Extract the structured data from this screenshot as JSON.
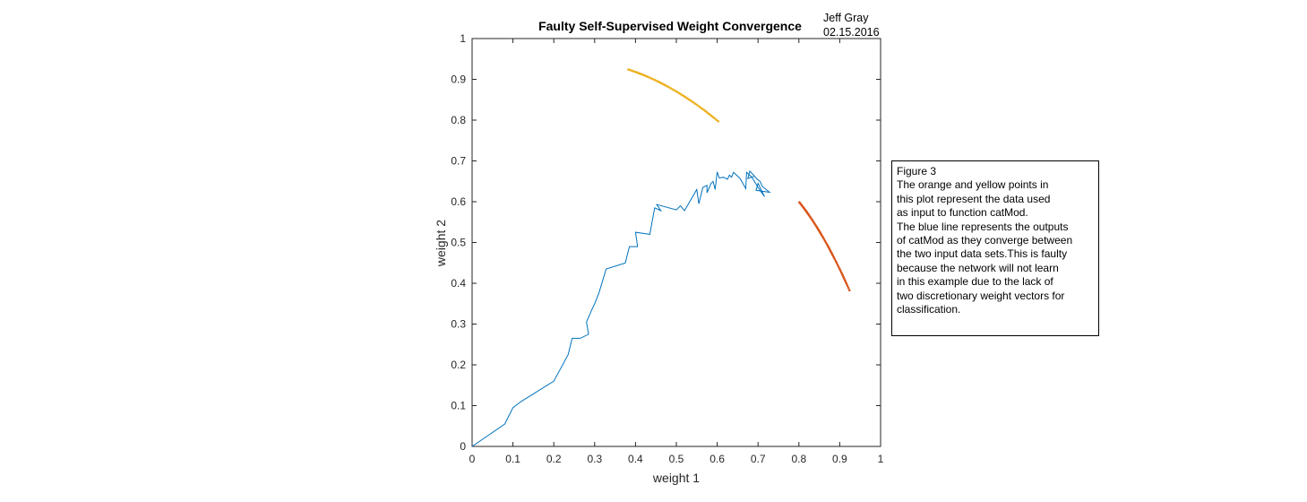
{
  "chart_data": {
    "type": "scatter",
    "title": "Faulty Self-Supervised Weight Convergence",
    "author_lines": [
      "Jeff Gray",
      "02.15.2016"
    ],
    "xlabel": "weight 1",
    "ylabel": "weight 2",
    "xlim": [
      0,
      1
    ],
    "ylim": [
      0,
      1
    ],
    "x_ticks": [
      "0",
      "0.1",
      "0.2",
      "0.3",
      "0.4",
      "0.5",
      "0.6",
      "0.7",
      "0.8",
      "0.9",
      "1"
    ],
    "y_ticks": [
      "0",
      "0.1",
      "0.2",
      "0.3",
      "0.4",
      "0.5",
      "0.6",
      "0.7",
      "0.8",
      "0.9",
      "1"
    ],
    "grid": false,
    "series": [
      {
        "kind": "line",
        "color": "#0072bd",
        "points": [
          [
            0.0,
            0.0
          ],
          [
            0.08,
            0.055
          ],
          [
            0.1,
            0.095
          ],
          [
            0.12,
            0.11
          ],
          [
            0.2,
            0.16
          ],
          [
            0.235,
            0.225
          ],
          [
            0.245,
            0.265
          ],
          [
            0.265,
            0.265
          ],
          [
            0.285,
            0.275
          ],
          [
            0.28,
            0.305
          ],
          [
            0.293,
            0.335
          ],
          [
            0.3,
            0.35
          ],
          [
            0.31,
            0.375
          ],
          [
            0.328,
            0.435
          ],
          [
            0.375,
            0.45
          ],
          [
            0.385,
            0.49
          ],
          [
            0.405,
            0.49
          ],
          [
            0.4,
            0.525
          ],
          [
            0.435,
            0.52
          ],
          [
            0.447,
            0.585
          ],
          [
            0.462,
            0.578
          ],
          [
            0.452,
            0.593
          ],
          [
            0.5,
            0.58
          ],
          [
            0.51,
            0.59
          ],
          [
            0.52,
            0.578
          ],
          [
            0.55,
            0.63
          ],
          [
            0.555,
            0.595
          ],
          [
            0.565,
            0.635
          ],
          [
            0.575,
            0.64
          ],
          [
            0.575,
            0.622
          ],
          [
            0.585,
            0.645
          ],
          [
            0.59,
            0.65
          ],
          [
            0.595,
            0.63
          ],
          [
            0.6,
            0.673
          ],
          [
            0.605,
            0.658
          ],
          [
            0.615,
            0.66
          ],
          [
            0.625,
            0.655
          ],
          [
            0.63,
            0.665
          ],
          [
            0.635,
            0.66
          ],
          [
            0.64,
            0.672
          ],
          [
            0.655,
            0.658
          ],
          [
            0.66,
            0.65
          ],
          [
            0.67,
            0.632
          ],
          [
            0.672,
            0.672
          ],
          [
            0.685,
            0.66
          ],
          [
            0.7,
            0.635
          ],
          [
            0.716,
            0.612
          ],
          [
            0.7,
            0.645
          ],
          [
            0.695,
            0.628
          ],
          [
            0.728,
            0.623
          ],
          [
            0.71,
            0.638
          ],
          [
            0.705,
            0.65
          ],
          [
            0.698,
            0.655
          ],
          [
            0.68,
            0.675
          ],
          [
            0.675,
            0.657
          ],
          [
            0.69,
            0.662
          ]
        ]
      },
      {
        "kind": "points",
        "color": "#edb120",
        "x_start": 0.38,
        "x_end": 0.605,
        "n": 60,
        "note_values": "points along arc from (0.38, 0.925) to (0.605, 0.795)"
      },
      {
        "kind": "points",
        "color": "#d95319",
        "x_start": 0.8,
        "x_end": 0.925,
        "n": 60,
        "note_values": "points along arc from (0.8, 0.6) to (0.925, 0.38)"
      }
    ]
  },
  "annotation": {
    "lines": [
      "Figure 3",
      "The orange and yellow points in",
      "this plot represent the data used",
      "as input to function catMod.",
      "The blue line represents the outputs",
      "of catMod as they converge between",
      "the two input data sets.This is faulty",
      "because the network will not learn",
      "in this example due to the lack of",
      "two discretionary weight vectors for",
      "classification."
    ]
  }
}
